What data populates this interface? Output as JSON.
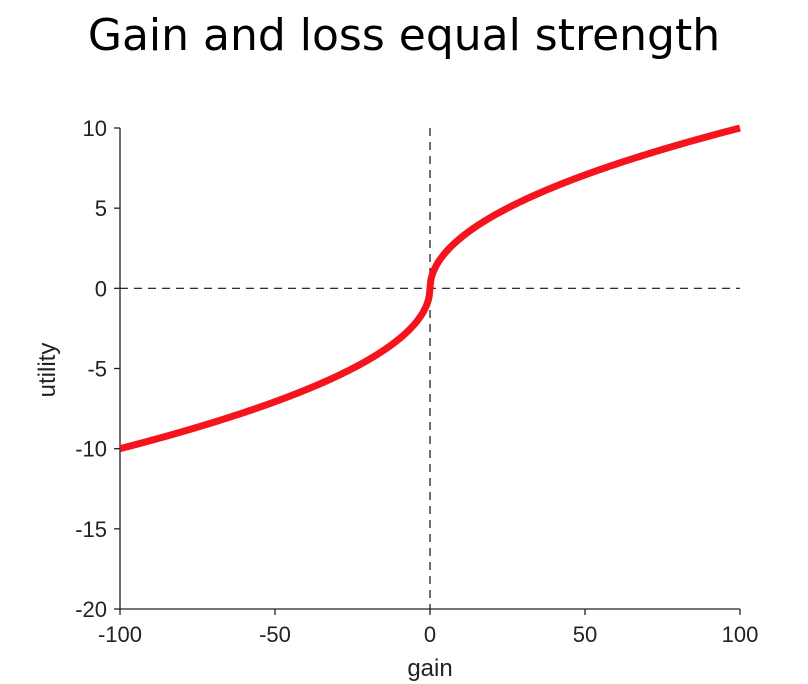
{
  "chart_data": {
    "type": "line",
    "title": "Gain and loss equal strength",
    "xlabel": "gain",
    "ylabel": "utility",
    "xlim": [
      -100,
      100
    ],
    "ylim": [
      -20,
      10
    ],
    "xticks": [
      -100,
      -50,
      0,
      50,
      100
    ],
    "yticks": [
      -20,
      -15,
      -10,
      -5,
      0,
      5,
      10
    ],
    "xtick_labels": [
      "-100",
      "-50",
      "0",
      "50",
      "100"
    ],
    "ytick_labels": [
      "-20",
      "-15",
      "-10",
      "-5",
      "0",
      "5",
      "10"
    ],
    "grid": false,
    "reference_lines": [
      {
        "axis": "x",
        "value": 0,
        "style": "dashed"
      },
      {
        "axis": "y",
        "value": 0,
        "style": "dashed"
      }
    ],
    "series": [
      {
        "name": "utility",
        "color": "#f5141e",
        "function": "sign(x)*sqrt(|x|)",
        "x": [
          -100,
          -75,
          -50,
          -25,
          -10,
          -5,
          -1,
          0,
          1,
          5,
          10,
          25,
          50,
          75,
          100
        ],
        "y": [
          -10,
          -8.66,
          -7.07,
          -5,
          -3.16,
          -2.24,
          -1,
          0,
          1,
          2.24,
          3.16,
          5,
          7.07,
          8.66,
          10
        ]
      }
    ]
  }
}
